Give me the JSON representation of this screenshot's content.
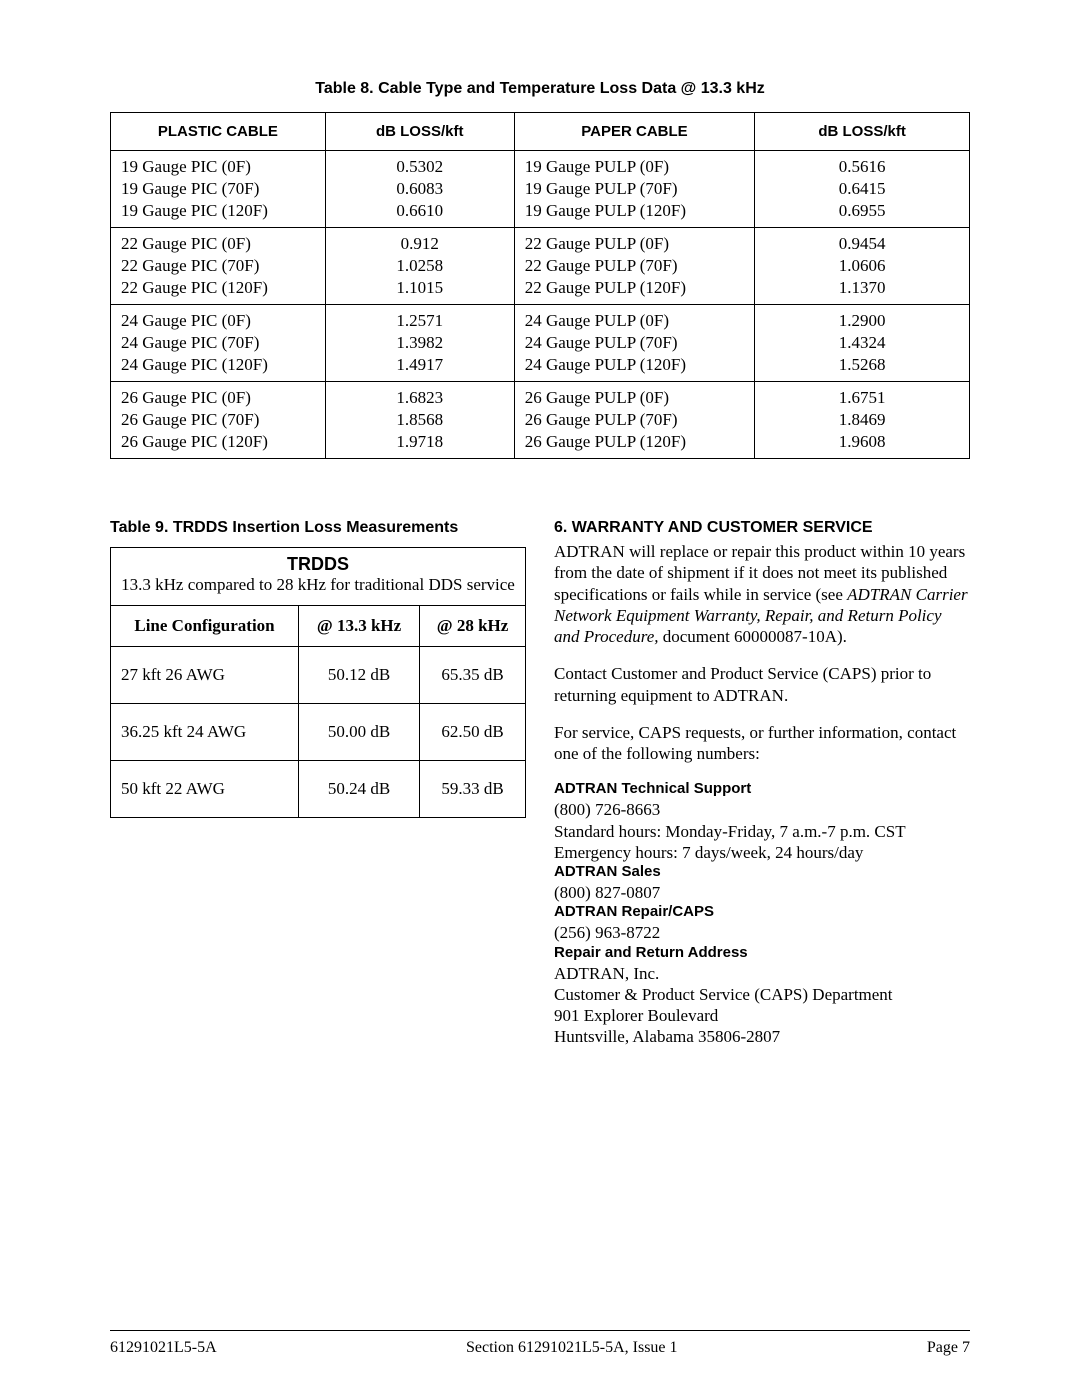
{
  "table8": {
    "title": "Table 8.  Cable Type and Temperature Loss Data @ 13.3 kHz",
    "columns": [
      "PLASTIC CABLE",
      "dB LOSS/kft",
      "PAPER CABLE",
      "dB LOSS/kft"
    ],
    "groups": [
      [
        {
          "plastic": "19 Gauge PIC (0F)",
          "pl": "0.5302",
          "paper": "19 Gauge PULP (0F)",
          "pp": "0.5616"
        },
        {
          "plastic": "19 Gauge PIC (70F)",
          "pl": "0.6083",
          "paper": "19 Gauge PULP (70F)",
          "pp": "0.6415"
        },
        {
          "plastic": "19 Gauge PIC (120F)",
          "pl": "0.6610",
          "paper": "19 Gauge PULP (120F)",
          "pp": "0.6955"
        }
      ],
      [
        {
          "plastic": "22 Gauge PIC (0F)",
          "pl": "0.912",
          "paper": "22 Gauge PULP (0F)",
          "pp": "0.9454"
        },
        {
          "plastic": "22 Gauge PIC (70F)",
          "pl": "1.0258",
          "paper": "22 Gauge PULP (70F)",
          "pp": "1.0606"
        },
        {
          "plastic": "22 Gauge PIC (120F)",
          "pl": "1.1015",
          "paper": "22 Gauge PULP (120F)",
          "pp": "1.1370"
        }
      ],
      [
        {
          "plastic": "24 Gauge PIC (0F)",
          "pl": "1.2571",
          "paper": "24 Gauge PULP (0F)",
          "pp": "1.2900"
        },
        {
          "plastic": "24 Gauge PIC (70F)",
          "pl": "1.3982",
          "paper": "24 Gauge PULP (70F)",
          "pp": "1.4324"
        },
        {
          "plastic": "24 Gauge PIC (120F)",
          "pl": "1.4917",
          "paper": "24 Gauge PULP (120F)",
          "pp": "1.5268"
        }
      ],
      [
        {
          "plastic": "26 Gauge PIC (0F)",
          "pl": "1.6823",
          "paper": "26 Gauge PULP (0F)",
          "pp": "1.6751"
        },
        {
          "plastic": "26 Gauge PIC (70F)",
          "pl": "1.8568",
          "paper": "26 Gauge PULP (70F)",
          "pp": "1.8469"
        },
        {
          "plastic": "26 Gauge PIC (120F)",
          "pl": "1.9718",
          "paper": "26 Gauge PULP (120F)",
          "pp": "1.9608"
        }
      ]
    ]
  },
  "table9": {
    "title": "Table 9.  TRDDS Insertion Loss Measurements",
    "header": "TRDDS",
    "subheader": "13.3 kHz compared to 28 kHz for traditional DDS service",
    "columns": [
      "Line Configuration",
      "@ 13.3 kHz",
      "@ 28 kHz"
    ],
    "rows": [
      {
        "cfg": "27 kft 26 AWG",
        "a": "50.12 dB",
        "b": "65.35 dB"
      },
      {
        "cfg": "36.25 kft 24 AWG",
        "a": "50.00 dB",
        "b": "62.50 dB"
      },
      {
        "cfg": "50 kft 22 AWG",
        "a": "50.24 dB",
        "b": "59.33 dB"
      }
    ]
  },
  "section6": {
    "heading": "6.   WARRANTY AND CUSTOMER SERVICE",
    "p1a": "ADTRAN will replace or repair this product within 10 years from the date of shipment if it does not meet its published specifications or fails while in service (see ",
    "p1i": "ADTRAN Carrier Network Equipment Warranty, Repair, and Return Policy and Procedure, ",
    "p1b": "document 60000087-10A).",
    "p2": "Contact Customer and Product Service (CAPS) prior to returning equipment to ADTRAN.",
    "p3": "For service, CAPS requests, or further information, contact one of the following numbers:",
    "tech_h": "ADTRAN Technical Support",
    "tech_phone": "(800) 726-8663",
    "tech_l1": "Standard hours:  Monday-Friday, 7 a.m.-7 p.m. CST",
    "tech_l2": "Emergency hours:  7 days/week, 24 hours/day",
    "sales_h": "ADTRAN Sales",
    "sales_phone": "(800) 827-0807",
    "repair_h": "ADTRAN Repair/CAPS",
    "repair_phone": "(256) 963-8722",
    "addr_h": "Repair and Return Address",
    "addr_l1": "ADTRAN, Inc.",
    "addr_l2": "Customer & Product Service (CAPS) Department",
    "addr_l3": "901 Explorer Boulevard",
    "addr_l4": "Huntsville, Alabama  35806-2807"
  },
  "footer": {
    "left": "61291021L5-5A",
    "center": "Section 61291021L5-5A, Issue 1",
    "right": "Page 7"
  }
}
